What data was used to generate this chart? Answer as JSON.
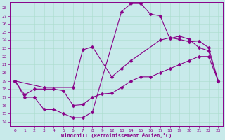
{
  "title": "",
  "xlabel": "Windchill (Refroidissement éolien,°C)",
  "bg_color": "#c8eaea",
  "line_color": "#880088",
  "grid_color": "#aadddd",
  "xlim": [
    -0.5,
    23.5
  ],
  "ylim": [
    13.5,
    28.7
  ],
  "xticks": [
    0,
    1,
    2,
    3,
    4,
    5,
    6,
    7,
    8,
    9,
    12,
    13,
    14,
    15,
    16,
    17,
    18,
    19,
    20,
    21,
    22,
    23
  ],
  "yticks": [
    14,
    15,
    16,
    17,
    18,
    19,
    20,
    21,
    22,
    23,
    24,
    25,
    26,
    27,
    28
  ],
  "series1_x": [
    0,
    1,
    2,
    3,
    4,
    5,
    6,
    7,
    8,
    13,
    14,
    15,
    16,
    17,
    18,
    19,
    20,
    21,
    22,
    23
  ],
  "series1_y": [
    19,
    17,
    17,
    15.5,
    15.5,
    15,
    14.5,
    14.5,
    15.2,
    27.5,
    28.5,
    28.5,
    27.2,
    27.0,
    24.2,
    24.5,
    24.1,
    23.1,
    22.7,
    19.0
  ],
  "series2_x": [
    0,
    3,
    6,
    7,
    8,
    12,
    13,
    14,
    17,
    18,
    19,
    20,
    21,
    22,
    23
  ],
  "series2_y": [
    19,
    18.2,
    18.2,
    22.8,
    23.2,
    19.5,
    20.5,
    21.5,
    24.0,
    24.3,
    24.1,
    23.8,
    23.9,
    23.1,
    19.0
  ],
  "series3_x": [
    0,
    1,
    2,
    3,
    4,
    5,
    6,
    7,
    8,
    9,
    12,
    13,
    14,
    15,
    16,
    17,
    18,
    19,
    20,
    21,
    22,
    23
  ],
  "series3_y": [
    19,
    17.3,
    18.0,
    18.0,
    18.0,
    17.8,
    16.0,
    16.1,
    17.0,
    17.4,
    17.5,
    18.2,
    19.0,
    19.5,
    19.5,
    20.0,
    20.5,
    21.0,
    21.5,
    22.0,
    22.0,
    19.0
  ]
}
